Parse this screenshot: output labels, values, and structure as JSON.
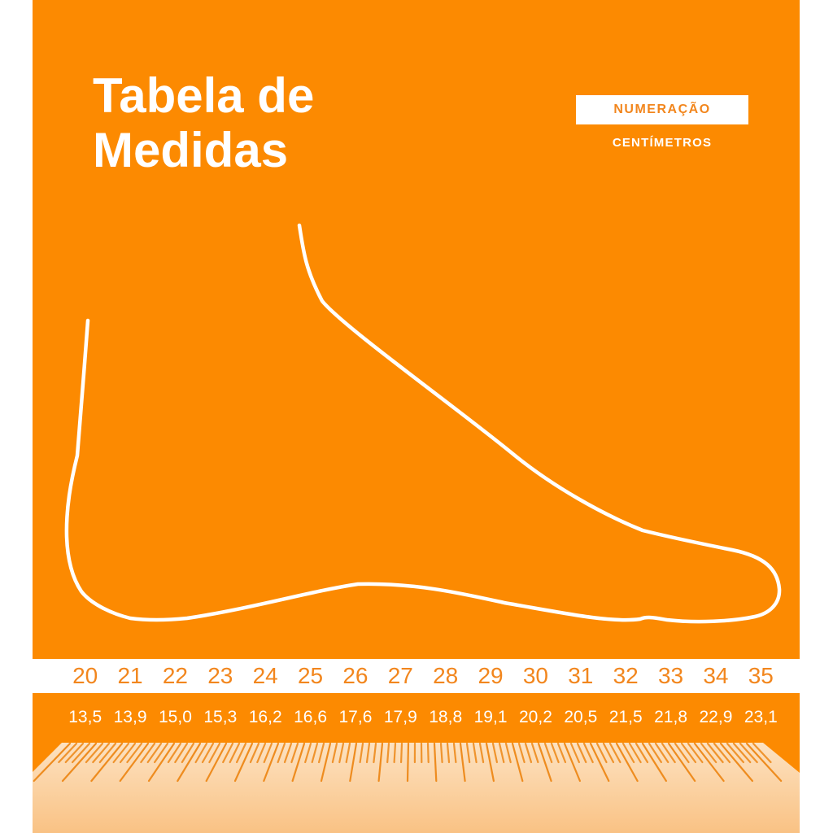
{
  "header": {
    "title": "Tabela de Medidas"
  },
  "legend": {
    "numeration": "NUMERAÇÃO",
    "centimeters": "CENTÍMETROS"
  },
  "chart_data": {
    "type": "table",
    "title": "Tabela de Medidas",
    "row_labels": [
      "NUMERAÇÃO",
      "CENTÍMETROS"
    ],
    "sizes": [
      "20",
      "21",
      "22",
      "23",
      "24",
      "25",
      "26",
      "27",
      "28",
      "29",
      "30",
      "31",
      "32",
      "33",
      "34",
      "35"
    ],
    "centimeters": [
      "13,5",
      "13,9",
      "15,0",
      "15,3",
      "16,2",
      "16,6",
      "17,6",
      "17,9",
      "18,8",
      "19,1",
      "20,2",
      "20,5",
      "21,5",
      "21,8",
      "22,9",
      "23,1"
    ]
  },
  "colors": {
    "background_orange": "#FC8A01",
    "text_white": "#FFFFFF",
    "accent_orange_text": "#F2861D",
    "ruler_tick_orange": "#EE8C1F",
    "ruler_surface_top": "#FDE2C1",
    "ruler_surface_bottom": "#F9C284"
  }
}
